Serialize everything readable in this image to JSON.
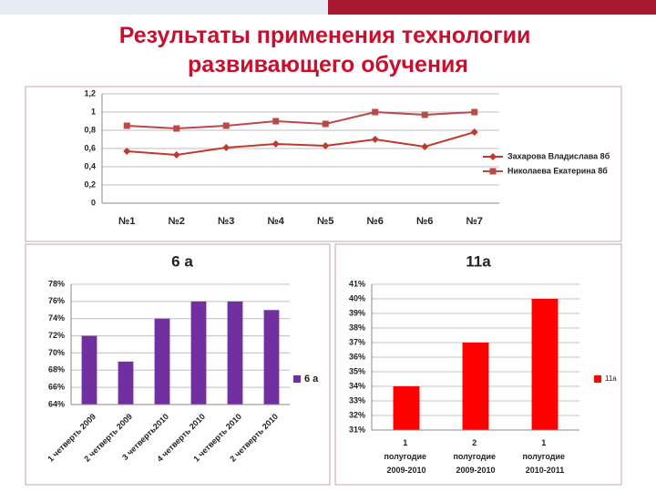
{
  "title": "Результаты применения технологии развивающего обучения",
  "chart_data": [
    {
      "type": "line",
      "categories": [
        "№1",
        "№2",
        "№3",
        "№4",
        "№5",
        "№6",
        "№6",
        "№7"
      ],
      "series": [
        {
          "name": "Захарова Владислава 8б",
          "color": "#c0392b",
          "marker": "diamond",
          "values": [
            0.57,
            0.53,
            0.61,
            0.65,
            0.63,
            0.7,
            0.62,
            0.78
          ]
        },
        {
          "name": "Николаева Екатерина 8б",
          "color": "#b94a48",
          "marker": "square",
          "values": [
            0.85,
            0.82,
            0.85,
            0.9,
            0.87,
            1.0,
            0.97,
            1.0
          ]
        }
      ],
      "ylim": [
        0,
        1.2
      ],
      "yticks": [
        0,
        {
          "value": 0.2,
          "label": "0,2"
        },
        {
          "value": 0.4,
          "label": "0,4"
        },
        {
          "value": 0.6,
          "label": "0,6"
        },
        {
          "value": 0.8,
          "label": "0,8"
        },
        1,
        {
          "value": 1.2,
          "label": "1,2"
        }
      ],
      "grid": true,
      "legend": "right"
    },
    {
      "type": "bar",
      "title": "6 а",
      "categories": [
        "1 четверть 2009",
        "2 четверть 2009",
        "3 четверть2010",
        "4 четверть 2010",
        "1 четверть 2010",
        "2 четверть 2010"
      ],
      "series": [
        {
          "name": "6 а",
          "color": "#7030a0",
          "values": [
            72,
            69,
            74,
            76,
            76,
            75
          ]
        }
      ],
      "ylim": [
        64,
        78
      ],
      "yticks": [
        {
          "value": 64,
          "label": "64%"
        },
        {
          "value": 66,
          "label": "66%"
        },
        {
          "value": 68,
          "label": "68%"
        },
        {
          "value": 70,
          "label": "70%"
        },
        {
          "value": 72,
          "label": "72%"
        },
        {
          "value": 74,
          "label": "74%"
        },
        {
          "value": 76,
          "label": "76%"
        },
        {
          "value": 78,
          "label": "78%"
        }
      ],
      "grid": true,
      "legend": "right"
    },
    {
      "type": "bar",
      "title": "11а",
      "categories": [
        "1 полугодие 2009-2010",
        "2 полугодие 2009-2010",
        "1 полугодие 2010-2011"
      ],
      "series": [
        {
          "name": "11а",
          "color": "#ff0000",
          "values": [
            34,
            37,
            40
          ]
        }
      ],
      "ylim": [
        31,
        41
      ],
      "yticks": [
        {
          "value": 31,
          "label": "31%"
        },
        {
          "value": 32,
          "label": "32%"
        },
        {
          "value": 33,
          "label": "33%"
        },
        {
          "value": 34,
          "label": "34%"
        },
        {
          "value": 35,
          "label": "35%"
        },
        {
          "value": 36,
          "label": "36%"
        },
        {
          "value": 37,
          "label": "37%"
        },
        {
          "value": 38,
          "label": "38%"
        },
        {
          "value": 39,
          "label": "39%"
        },
        {
          "value": 40,
          "label": "40%"
        },
        {
          "value": 41,
          "label": "41%"
        }
      ],
      "grid": true,
      "legend": "right"
    }
  ]
}
